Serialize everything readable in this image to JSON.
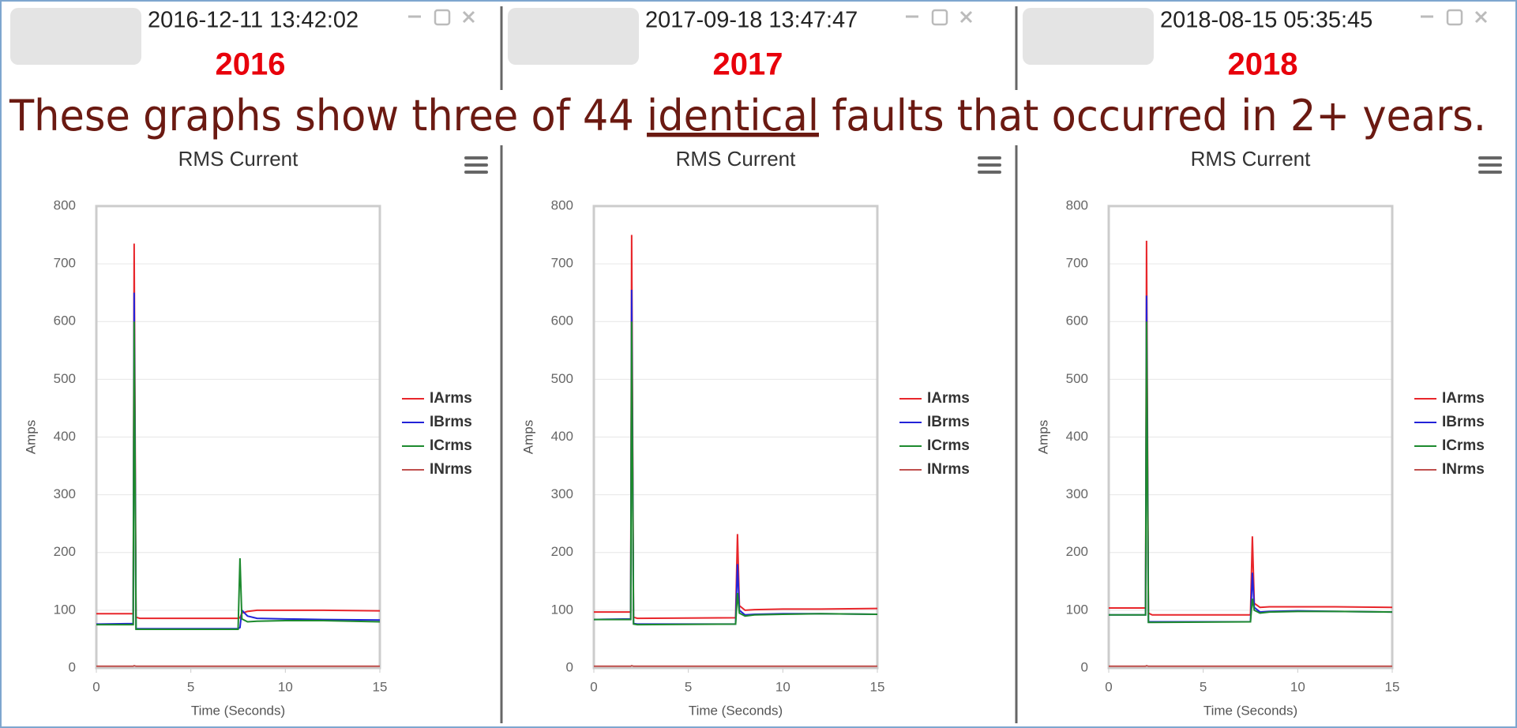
{
  "windows": [
    {
      "timestamp": "2016-12-11 13:42:02",
      "year": "2016"
    },
    {
      "timestamp": "2017-09-18 13:47:47",
      "year": "2017"
    },
    {
      "timestamp": "2018-08-15 05:35:45",
      "year": "2018"
    }
  ],
  "caption": {
    "before": "These graphs show three of 44",
    "underlined": "identical",
    "after": "faults that occurred in 2+ years."
  },
  "chart_data": [
    {
      "type": "line",
      "title": "RMS Current",
      "ylabel": "Amps",
      "xlabel": "Time (Seconds)",
      "xlim": [
        0,
        15
      ],
      "ylim": [
        0,
        800
      ],
      "xticks": [
        0,
        5,
        10,
        15
      ],
      "yticks": [
        0,
        100,
        200,
        300,
        400,
        500,
        600,
        700,
        800
      ],
      "grid": true,
      "x": [
        0,
        1.95,
        2.0,
        2.1,
        2.3,
        7.5,
        7.6,
        7.7,
        8.0,
        8.5,
        10,
        12,
        15
      ],
      "series": [
        {
          "name": "IArms",
          "color": "#e8262b",
          "values": [
            94,
            94,
            735,
            88,
            86,
            86,
            87,
            95,
            98,
            100,
            100,
            100,
            99
          ]
        },
        {
          "name": "IBrms",
          "color": "#2323d8",
          "values": [
            76,
            77,
            650,
            68,
            68,
            68,
            70,
            100,
            90,
            86,
            85,
            84,
            83
          ]
        },
        {
          "name": "ICrms",
          "color": "#1d8a2e",
          "values": [
            75,
            75,
            600,
            67,
            67,
            67,
            190,
            85,
            80,
            81,
            82,
            82,
            80
          ]
        },
        {
          "name": "INrms",
          "color": "#c0504d",
          "values": [
            3,
            3,
            4,
            3,
            3,
            3,
            3,
            3,
            3,
            3,
            3,
            3,
            3
          ]
        }
      ]
    },
    {
      "type": "line",
      "title": "RMS Current",
      "ylabel": "Amps",
      "xlabel": "Time (Seconds)",
      "xlim": [
        0,
        15
      ],
      "ylim": [
        0,
        800
      ],
      "xticks": [
        0,
        5,
        10,
        15
      ],
      "yticks": [
        0,
        100,
        200,
        300,
        400,
        500,
        600,
        700,
        800
      ],
      "grid": true,
      "x": [
        0,
        1.95,
        2.0,
        2.1,
        2.3,
        7.5,
        7.6,
        7.7,
        8.0,
        8.5,
        10,
        12,
        15
      ],
      "series": [
        {
          "name": "IArms",
          "color": "#e8262b",
          "values": [
            97,
            97,
            750,
            88,
            86,
            87,
            232,
            108,
            100,
            101,
            102,
            102,
            103
          ]
        },
        {
          "name": "IBrms",
          "color": "#2323d8",
          "values": [
            84,
            85,
            655,
            77,
            76,
            76,
            180,
            100,
            92,
            93,
            94,
            94,
            93
          ]
        },
        {
          "name": "ICrms",
          "color": "#1d8a2e",
          "values": [
            84,
            84,
            600,
            76,
            75,
            76,
            130,
            95,
            90,
            92,
            93,
            94,
            93
          ]
        },
        {
          "name": "INrms",
          "color": "#c0504d",
          "values": [
            3,
            3,
            4,
            3,
            3,
            3,
            3,
            3,
            3,
            3,
            3,
            3,
            3
          ]
        }
      ]
    },
    {
      "type": "line",
      "title": "RMS Current",
      "ylabel": "Amps",
      "xlabel": "Time (Seconds)",
      "xlim": [
        0,
        15
      ],
      "ylim": [
        0,
        800
      ],
      "xticks": [
        0,
        5,
        10,
        15
      ],
      "yticks": [
        0,
        100,
        200,
        300,
        400,
        500,
        600,
        700,
        800
      ],
      "grid": true,
      "x": [
        0,
        1.95,
        2.0,
        2.1,
        2.3,
        7.5,
        7.6,
        7.7,
        8.0,
        8.5,
        10,
        12,
        15
      ],
      "series": [
        {
          "name": "IArms",
          "color": "#e8262b",
          "values": [
            104,
            104,
            740,
            95,
            92,
            92,
            228,
            112,
            105,
            106,
            106,
            106,
            105
          ]
        },
        {
          "name": "IBrms",
          "color": "#2323d8",
          "values": [
            92,
            92,
            645,
            80,
            80,
            80,
            165,
            105,
            97,
            98,
            99,
            98,
            97
          ]
        },
        {
          "name": "ICrms",
          "color": "#1d8a2e",
          "values": [
            92,
            92,
            600,
            79,
            79,
            80,
            120,
            100,
            95,
            97,
            98,
            98,
            97
          ]
        },
        {
          "name": "INrms",
          "color": "#c0504d",
          "values": [
            3,
            3,
            4,
            3,
            3,
            3,
            3,
            3,
            3,
            3,
            3,
            3,
            3
          ]
        }
      ]
    }
  ]
}
